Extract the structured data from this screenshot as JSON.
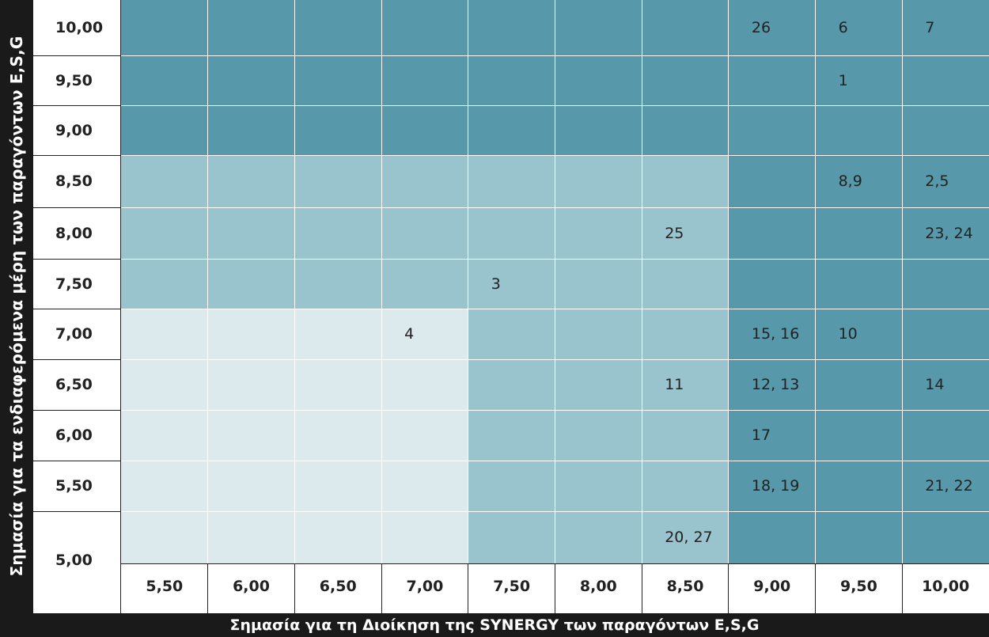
{
  "chart_data": {
    "type": "heatmap",
    "xlabel": "Σημασία για τη Διοίκηση της SYNERGY των παραγόντων E,S,G",
    "ylabel": "Σημασία για τα ενδιαφερόμενα μέρη των παραγόντων E,S,G",
    "x_ticks": [
      "5,50",
      "6,00",
      "6,50",
      "7,00",
      "7,50",
      "8,00",
      "8,50",
      "9,00",
      "9,50",
      "10,00"
    ],
    "y_ticks": [
      "10,00",
      "9,50",
      "9,00",
      "8,50",
      "8,00",
      "7,50",
      "7,00",
      "6,50",
      "6,00",
      "5,50",
      "5,00"
    ],
    "zone_colors": {
      "high": "#5799AA",
      "medium": "#9AC4CD",
      "low": "#DCE9ED"
    },
    "zones": [
      [
        "high",
        "high",
        "high",
        "high",
        "high",
        "high",
        "high",
        "high",
        "high",
        "high"
      ],
      [
        "high",
        "high",
        "high",
        "high",
        "high",
        "high",
        "high",
        "high",
        "high",
        "high"
      ],
      [
        "high",
        "high",
        "high",
        "high",
        "high",
        "high",
        "high",
        "high",
        "high",
        "high"
      ],
      [
        "medium",
        "medium",
        "medium",
        "medium",
        "medium",
        "medium",
        "medium",
        "high",
        "high",
        "high"
      ],
      [
        "medium",
        "medium",
        "medium",
        "medium",
        "medium",
        "medium",
        "medium",
        "high",
        "high",
        "high"
      ],
      [
        "medium",
        "medium",
        "medium",
        "medium",
        "medium",
        "medium",
        "medium",
        "high",
        "high",
        "high"
      ],
      [
        "low",
        "low",
        "low",
        "low",
        "medium",
        "medium",
        "medium",
        "high",
        "high",
        "high"
      ],
      [
        "low",
        "low",
        "low",
        "low",
        "medium",
        "medium",
        "medium",
        "high",
        "high",
        "high"
      ],
      [
        "low",
        "low",
        "low",
        "low",
        "medium",
        "medium",
        "medium",
        "high",
        "high",
        "high"
      ],
      [
        "low",
        "low",
        "low",
        "low",
        "medium",
        "medium",
        "medium",
        "high",
        "high",
        "high"
      ],
      [
        "low",
        "low",
        "low",
        "low",
        "medium",
        "medium",
        "medium",
        "high",
        "high",
        "high"
      ]
    ],
    "points": [
      {
        "x": "9,00",
        "y": "10,00",
        "label": "26"
      },
      {
        "x": "9,50",
        "y": "10,00",
        "label": "6"
      },
      {
        "x": "10,00",
        "y": "10,00",
        "label": "7"
      },
      {
        "x": "9,50",
        "y": "9,50",
        "label": "1"
      },
      {
        "x": "9,50",
        "y": "8,50",
        "label": "8,9"
      },
      {
        "x": "10,00",
        "y": "8,50",
        "label": "2,5"
      },
      {
        "x": "8,50",
        "y": "8,00",
        "label": "25"
      },
      {
        "x": "10,00",
        "y": "8,00",
        "label": "23, 24"
      },
      {
        "x": "7,50",
        "y": "7,50",
        "label": "3"
      },
      {
        "x": "7,00",
        "y": "7,00",
        "label": "4"
      },
      {
        "x": "9,00",
        "y": "7,00",
        "label": "15, 16"
      },
      {
        "x": "9,50",
        "y": "7,00",
        "label": "10"
      },
      {
        "x": "8,50",
        "y": "6,50",
        "label": "11"
      },
      {
        "x": "9,00",
        "y": "6,50",
        "label": "12, 13"
      },
      {
        "x": "10,00",
        "y": "6,50",
        "label": "14"
      },
      {
        "x": "9,00",
        "y": "6,00",
        "label": "17"
      },
      {
        "x": "9,00",
        "y": "5,50",
        "label": "18, 19"
      },
      {
        "x": "10,00",
        "y": "5,50",
        "label": "21, 22"
      },
      {
        "x": "8,50",
        "y": "5,00",
        "label": "20, 27"
      }
    ]
  }
}
